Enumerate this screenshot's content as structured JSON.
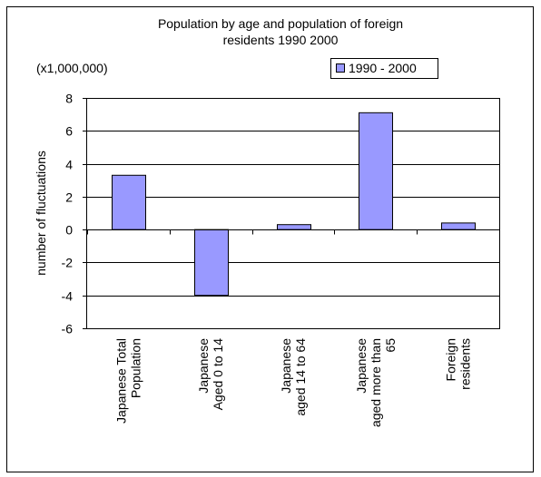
{
  "chart_data": {
    "type": "bar",
    "title": "Population by age and population of foreign residents 1990  2000",
    "title_lines": [
      "Population by age and population of foreign",
      "residents 1990  2000"
    ],
    "unit_label": "(x1,000,000)",
    "ylabel": "number of fluctuations",
    "xlabel": "",
    "ylim": [
      -6,
      8
    ],
    "yticks": [
      8,
      6,
      4,
      2,
      0,
      -2,
      -4,
      -6
    ],
    "grid": true,
    "legend_position": "top-right",
    "categories": [
      [
        "Japanese Total",
        "Population"
      ],
      [
        "Japanese",
        "Aged 0 to 14"
      ],
      [
        "Japanese",
        "aged 14 to 64"
      ],
      [
        "Japanese",
        "aged more than",
        "65"
      ],
      [
        "Foreign",
        "residents"
      ]
    ],
    "series": [
      {
        "name": "1990 - 2000",
        "color": "#9999ff",
        "values": [
          3.3,
          -4.0,
          0.3,
          7.1,
          0.4
        ]
      }
    ]
  }
}
